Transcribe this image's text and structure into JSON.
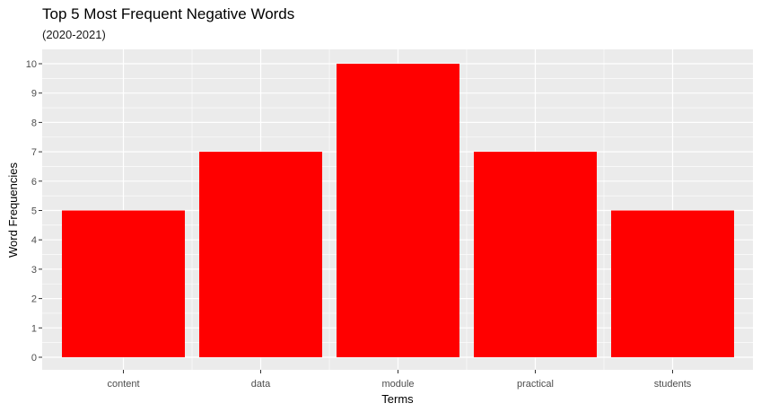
{
  "chart_data": {
    "type": "bar",
    "title": "Top 5 Most Frequent Negative Words",
    "subtitle": "(2020-2021)",
    "xlabel": "Terms",
    "ylabel": "Word Frequencies",
    "categories": [
      "content",
      "data",
      "module",
      "practical",
      "students"
    ],
    "values": [
      5,
      7,
      10,
      7,
      5
    ],
    "ylim": [
      0,
      10
    ],
    "yticks": [
      "0",
      "1",
      "2",
      "3",
      "4",
      "5",
      "6",
      "7",
      "8",
      "9",
      "10"
    ],
    "grid": true,
    "bar_color": "#FF0000",
    "panel_color": "#EBEBEB",
    "grid_color": "#FFFFFF"
  }
}
